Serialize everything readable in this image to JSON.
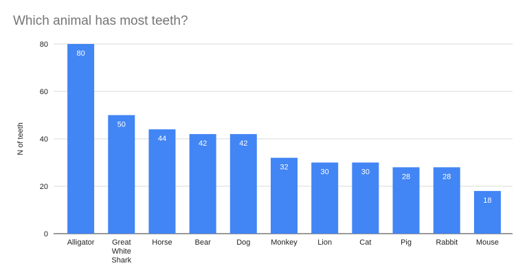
{
  "chart_data": {
    "type": "bar",
    "title": "Which animal has most teeth?",
    "xlabel": "",
    "ylabel": "N of teeth",
    "categories": [
      "Alligator",
      "Great White Shark",
      "Horse",
      "Bear",
      "Dog",
      "Monkey",
      "Lion",
      "Cat",
      "Pig",
      "Rabbit",
      "Mouse"
    ],
    "category_lines": [
      [
        "Alligator"
      ],
      [
        "Great",
        "White",
        "Shark"
      ],
      [
        "Horse"
      ],
      [
        "Bear"
      ],
      [
        "Dog"
      ],
      [
        "Monkey"
      ],
      [
        "Lion"
      ],
      [
        "Cat"
      ],
      [
        "Pig"
      ],
      [
        "Rabbit"
      ],
      [
        "Mouse"
      ]
    ],
    "values": [
      80,
      50,
      44,
      42,
      42,
      32,
      30,
      30,
      28,
      28,
      18
    ],
    "ylim": [
      0,
      80
    ],
    "yticks": [
      0,
      20,
      40,
      60,
      80
    ],
    "grid": true,
    "data_labels": true,
    "bar_color": "#4285f4",
    "legend": "none"
  }
}
